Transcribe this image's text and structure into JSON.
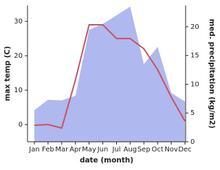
{
  "chart_data": {
    "type": "line",
    "x_label": "date (month)",
    "y_label": "max temp (C)",
    "y2_label": "med. precipitation (kg/m2)",
    "categories": [
      "Jan",
      "Feb",
      "Mar",
      "Apr",
      "May",
      "Jun",
      "Jul",
      "Aug",
      "Sep",
      "Oct",
      "Nov",
      "Dec"
    ],
    "series": [
      {
        "color": "#b0b8f0",
        "area": true,
        "axis": "y2",
        "values": [
          5.5,
          7.3,
          7.2,
          8,
          19.5,
          20.5,
          22,
          23.5,
          13.5,
          16.5,
          8.5,
          7
        ]
      },
      {
        "color": "#c8525a",
        "values": [
          -0.2,
          0,
          -1,
          13,
          29,
          29,
          25,
          25,
          22,
          16,
          8,
          1
        ]
      }
    ],
    "ylim": [
      -5,
      34.6
    ],
    "yticks": [
      0,
      10,
      20,
      30
    ],
    "y2lim": [
      0,
      23.7
    ],
    "y2ticks": [
      0,
      5,
      10,
      15,
      20
    ]
  }
}
